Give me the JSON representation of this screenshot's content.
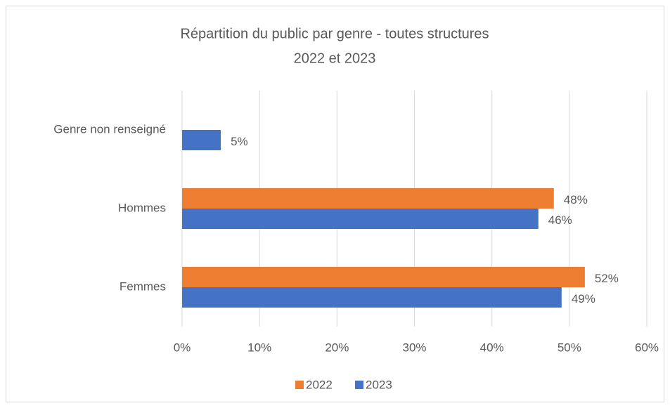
{
  "chart_data": {
    "type": "hbar",
    "title": "Répartition du public par genre - toutes structures",
    "subtitle": "2022 et 2023",
    "categories": [
      "Genre non renseigné",
      "Hommes",
      "Femmes"
    ],
    "series": [
      {
        "name": "2022",
        "color": "#ed7d31",
        "values": [
          null,
          48,
          52
        ],
        "value_labels": [
          null,
          "48%",
          "52%"
        ]
      },
      {
        "name": "2023",
        "color": "#4472c4",
        "values": [
          5,
          46,
          49
        ],
        "value_labels": [
          "5%",
          "46%",
          "49%"
        ]
      }
    ],
    "xlim": [
      0,
      60
    ],
    "xticks": [
      {
        "value": 0,
        "label": "0%"
      },
      {
        "value": 10,
        "label": "10%"
      },
      {
        "value": 20,
        "label": "20%"
      },
      {
        "value": 30,
        "label": "30%"
      },
      {
        "value": 40,
        "label": "40%"
      },
      {
        "value": 50,
        "label": "50%"
      },
      {
        "value": 60,
        "label": "60%"
      }
    ],
    "grid": true,
    "legend": "bottom"
  }
}
